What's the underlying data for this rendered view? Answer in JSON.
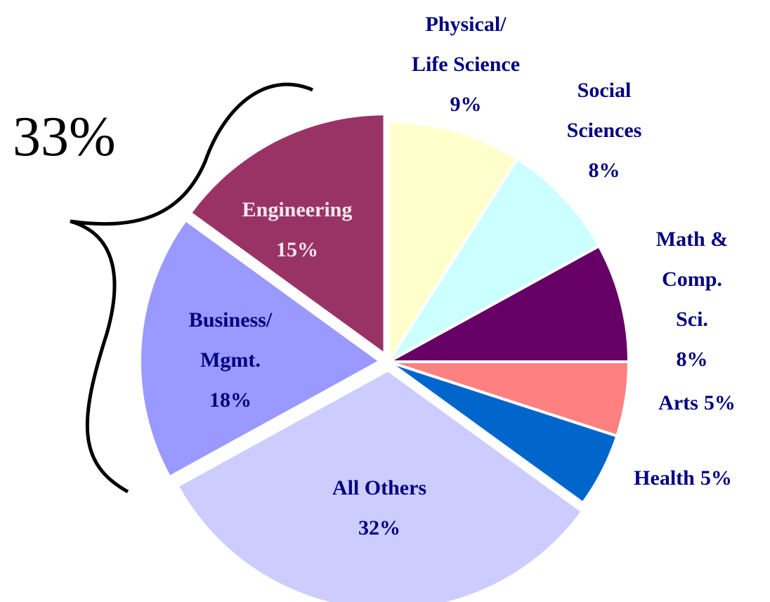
{
  "chart_data": {
    "type": "pie",
    "annotation": "33%",
    "categories": [
      "Physical/\nLife Science",
      "Social\nSciences",
      "Math &\nComp. Sci.",
      "Arts",
      "Health",
      "All Others",
      "Business/\nMgmt.",
      "Engineering"
    ],
    "values": [
      9,
      8,
      8,
      5,
      5,
      32,
      18,
      15
    ],
    "value_labels": [
      "9%",
      "8%",
      "8%",
      "5%",
      "5%",
      "32%",
      "18%",
      "15%"
    ],
    "colors": [
      "#ffffcc",
      "#ccffff",
      "#660066",
      "#ff8080",
      "#0066cc",
      "#ccccff",
      "#9999ff",
      "#993366"
    ]
  }
}
